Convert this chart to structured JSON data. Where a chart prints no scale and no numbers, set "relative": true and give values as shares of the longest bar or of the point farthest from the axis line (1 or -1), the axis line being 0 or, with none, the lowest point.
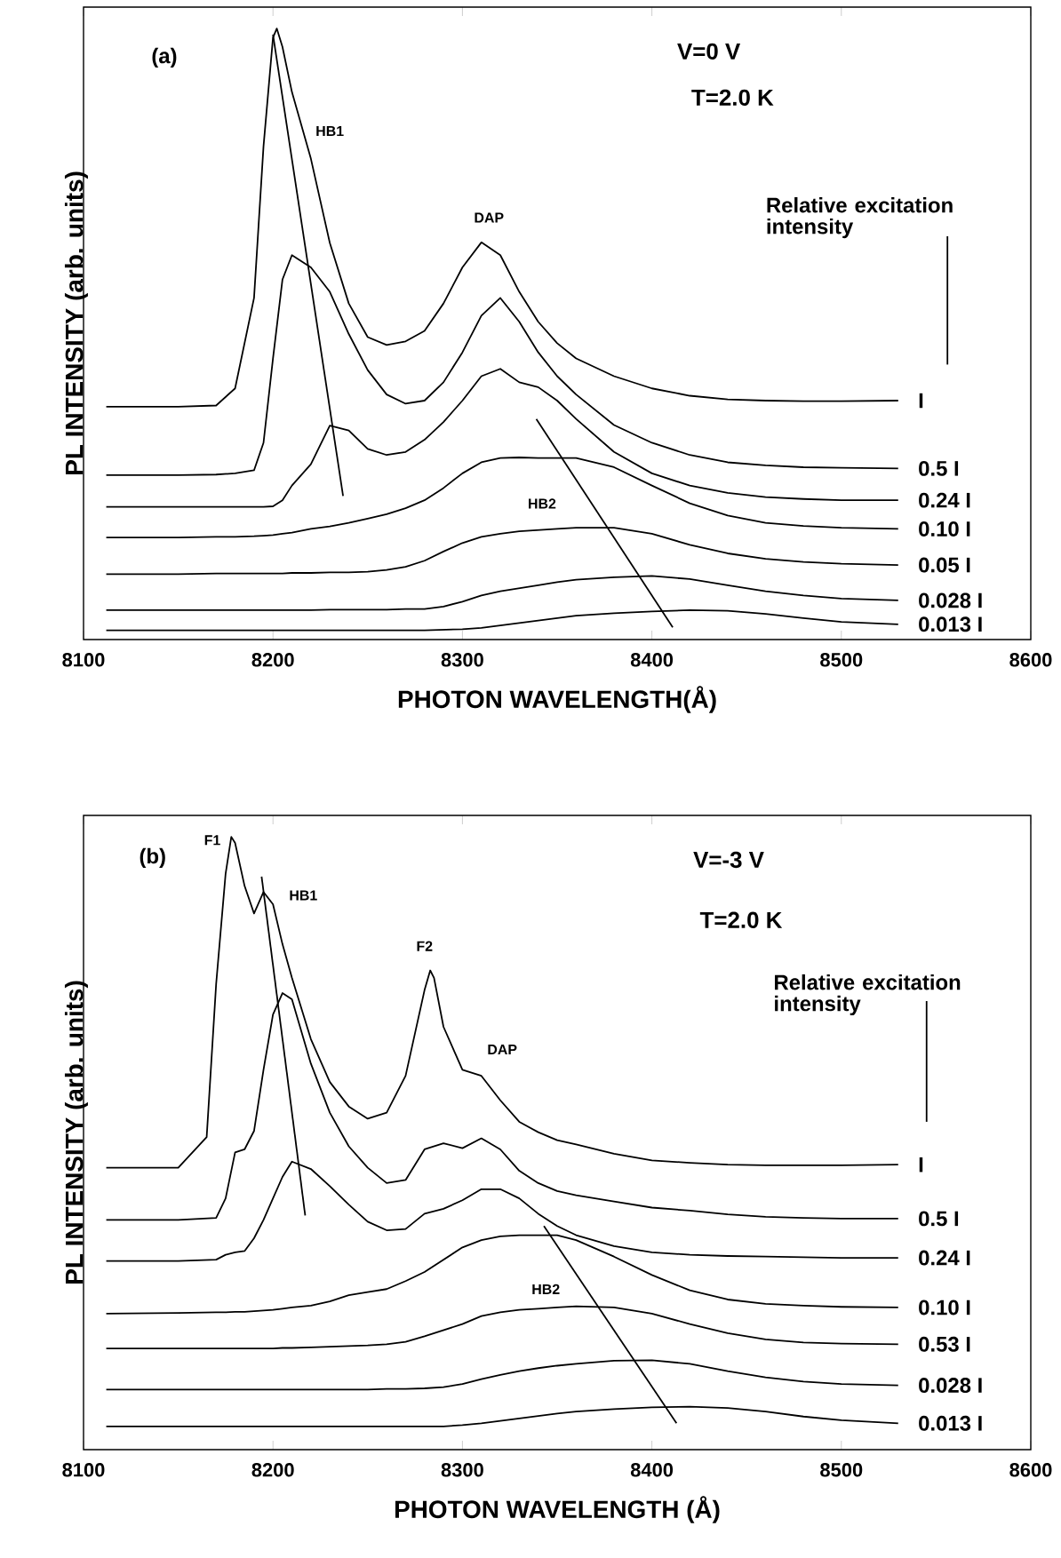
{
  "chart_data": [
    {
      "type": "line",
      "relative": true,
      "title": "(a)",
      "xlabel": "PHOTON WAVELENGTH(Å)",
      "ylabel": "PL INTENSITY (arb. units)",
      "legend_title": "Relative excitation intensity",
      "annotations": [
        "V=0 V",
        "T=2.0 K",
        "HB1",
        "DAP",
        "HB2"
      ],
      "xlim": [
        8100,
        8600
      ],
      "xticks": [
        8100,
        8200,
        8300,
        8400,
        8500,
        8600
      ],
      "series": [
        {
          "name": "I",
          "color": "#000000",
          "x": [
            8112,
            8150,
            8170,
            8180,
            8190,
            8195,
            8200,
            8202,
            8205,
            8210,
            8220,
            8230,
            8240,
            8250,
            8260,
            8270,
            8280,
            8290,
            8300,
            8310,
            8320,
            8330,
            8340,
            8350,
            8360,
            8380,
            8400,
            8420,
            8440,
            8460,
            8480,
            8500,
            8530
          ],
          "values": [
            0.381,
            0.381,
            0.383,
            0.411,
            0.559,
            0.807,
            0.985,
            1.0,
            0.97,
            0.896,
            0.787,
            0.649,
            0.55,
            0.495,
            0.482,
            0.488,
            0.505,
            0.55,
            0.609,
            0.65,
            0.629,
            0.569,
            0.52,
            0.485,
            0.46,
            0.431,
            0.411,
            0.399,
            0.393,
            0.391,
            0.39,
            0.39,
            0.391
          ]
        },
        {
          "name": "0.5 I",
          "color": "#000000",
          "x": [
            8112,
            8150,
            8170,
            8180,
            8190,
            8195,
            8200,
            8205,
            8210,
            8220,
            8230,
            8240,
            8250,
            8260,
            8270,
            8280,
            8290,
            8300,
            8310,
            8320,
            8330,
            8340,
            8350,
            8360,
            8380,
            8400,
            8420,
            8440,
            8460,
            8480,
            8500,
            8530
          ],
          "values": [
            0.269,
            0.269,
            0.27,
            0.272,
            0.277,
            0.322,
            0.46,
            0.589,
            0.629,
            0.609,
            0.569,
            0.5,
            0.441,
            0.401,
            0.386,
            0.391,
            0.421,
            0.47,
            0.53,
            0.559,
            0.52,
            0.47,
            0.431,
            0.401,
            0.351,
            0.322,
            0.302,
            0.29,
            0.285,
            0.282,
            0.281,
            0.28
          ]
        },
        {
          "name": "0.24 I",
          "color": "#000000",
          "x": [
            8112,
            8150,
            8170,
            8180,
            8190,
            8195,
            8200,
            8205,
            8210,
            8220,
            8230,
            8240,
            8250,
            8260,
            8270,
            8280,
            8290,
            8300,
            8310,
            8320,
            8330,
            8340,
            8350,
            8360,
            8380,
            8400,
            8420,
            8440,
            8460,
            8480,
            8500,
            8530
          ],
          "values": [
            0.217,
            0.217,
            0.217,
            0.217,
            0.217,
            0.217,
            0.218,
            0.228,
            0.252,
            0.287,
            0.35,
            0.342,
            0.312,
            0.302,
            0.307,
            0.327,
            0.356,
            0.391,
            0.431,
            0.443,
            0.421,
            0.413,
            0.391,
            0.361,
            0.307,
            0.272,
            0.252,
            0.24,
            0.233,
            0.23,
            0.228,
            0.228
          ]
        },
        {
          "name": "0.10 I",
          "color": "#000000",
          "x": [
            8112,
            8150,
            8170,
            8180,
            8190,
            8195,
            8200,
            8205,
            8210,
            8220,
            8230,
            8240,
            8250,
            8260,
            8270,
            8280,
            8290,
            8300,
            8310,
            8320,
            8330,
            8340,
            8350,
            8360,
            8380,
            8400,
            8420,
            8440,
            8460,
            8480,
            8500,
            8530
          ],
          "values": [
            0.167,
            0.167,
            0.168,
            0.168,
            0.169,
            0.17,
            0.171,
            0.173,
            0.175,
            0.181,
            0.185,
            0.191,
            0.198,
            0.205,
            0.215,
            0.228,
            0.248,
            0.272,
            0.29,
            0.297,
            0.298,
            0.297,
            0.297,
            0.297,
            0.282,
            0.252,
            0.223,
            0.203,
            0.191,
            0.186,
            0.183,
            0.181
          ]
        },
        {
          "name": "0.05 I",
          "color": "#000000",
          "x": [
            8112,
            8150,
            8170,
            8180,
            8190,
            8195,
            8200,
            8205,
            8210,
            8220,
            8230,
            8240,
            8250,
            8260,
            8270,
            8280,
            8290,
            8300,
            8310,
            8320,
            8330,
            8340,
            8350,
            8360,
            8380,
            8400,
            8420,
            8440,
            8460,
            8480,
            8500,
            8530
          ],
          "values": [
            0.107,
            0.107,
            0.108,
            0.108,
            0.108,
            0.108,
            0.108,
            0.108,
            0.109,
            0.109,
            0.11,
            0.11,
            0.111,
            0.114,
            0.119,
            0.129,
            0.144,
            0.158,
            0.168,
            0.173,
            0.177,
            0.179,
            0.181,
            0.183,
            0.183,
            0.173,
            0.155,
            0.141,
            0.132,
            0.127,
            0.124,
            0.122
          ]
        },
        {
          "name": "0.028 I",
          "color": "#000000",
          "x": [
            8112,
            8150,
            8170,
            8180,
            8190,
            8195,
            8200,
            8205,
            8210,
            8220,
            8230,
            8240,
            8250,
            8260,
            8270,
            8280,
            8290,
            8300,
            8310,
            8320,
            8330,
            8340,
            8350,
            8360,
            8380,
            8400,
            8420,
            8440,
            8460,
            8480,
            8500,
            8530
          ],
          "values": [
            0.048,
            0.048,
            0.048,
            0.048,
            0.048,
            0.048,
            0.048,
            0.048,
            0.048,
            0.048,
            0.049,
            0.049,
            0.049,
            0.049,
            0.05,
            0.05,
            0.054,
            0.062,
            0.072,
            0.079,
            0.084,
            0.089,
            0.094,
            0.098,
            0.102,
            0.104,
            0.099,
            0.089,
            0.079,
            0.072,
            0.067,
            0.064
          ]
        },
        {
          "name": "0.013 I",
          "color": "#000000",
          "x": [
            8112,
            8150,
            8170,
            8180,
            8190,
            8195,
            8200,
            8205,
            8210,
            8220,
            8230,
            8240,
            8250,
            8260,
            8270,
            8280,
            8290,
            8300,
            8310,
            8320,
            8330,
            8340,
            8350,
            8360,
            8380,
            8400,
            8420,
            8440,
            8460,
            8480,
            8500,
            8530
          ],
          "values": [
            0.015,
            0.015,
            0.015,
            0.015,
            0.015,
            0.015,
            0.015,
            0.015,
            0.015,
            0.015,
            0.015,
            0.015,
            0.015,
            0.015,
            0.015,
            0.015,
            0.016,
            0.017,
            0.019,
            0.023,
            0.027,
            0.031,
            0.035,
            0.039,
            0.043,
            0.046,
            0.048,
            0.047,
            0.042,
            0.035,
            0.029,
            0.025
          ]
        },
        {
          "type": "line",
          "color": "#000000",
          "x": [
            8200,
            8237
          ],
          "values": [
            0.99,
            0.235
          ]
        },
        {
          "type": "line",
          "color": "#000000",
          "x": [
            8339,
            8411
          ],
          "values": [
            0.361,
            0.02
          ]
        },
        {
          "type": "line",
          "color": "#000000",
          "x": [
            8556,
            8556
          ],
          "values": [
            0.66,
            0.45
          ]
        }
      ]
    },
    {
      "type": "line",
      "relative": true,
      "title": "(b)",
      "xlabel": "PHOTON WAVELENGTH (Å)",
      "ylabel": "PL INTENSITY (arb. units)",
      "legend_title": "Relative excitation intensity",
      "annotations": [
        "V=-3 V",
        "T=2.0 K",
        "F1",
        "HB1",
        "F2",
        "DAP",
        "HB2"
      ],
      "xlim": [
        8100,
        8600
      ],
      "xticks": [
        8100,
        8200,
        8300,
        8400,
        8500,
        8600
      ],
      "series": [
        {
          "name": "I",
          "color": "#000000",
          "x": [
            8112,
            8150,
            8165,
            8170,
            8175,
            8178,
            8180,
            8185,
            8190,
            8195,
            8200,
            8205,
            8210,
            8220,
            8230,
            8240,
            8250,
            8260,
            8270,
            8280,
            8283,
            8285,
            8290,
            8300,
            8310,
            8320,
            8330,
            8340,
            8350,
            8360,
            8380,
            8400,
            8420,
            8440,
            8460,
            8480,
            8500,
            8530
          ],
          "values": [
            0.46,
            0.46,
            0.51,
            0.76,
            0.94,
            1.0,
            0.99,
            0.92,
            0.875,
            0.91,
            0.89,
            0.825,
            0.77,
            0.67,
            0.6,
            0.56,
            0.54,
            0.55,
            0.61,
            0.75,
            0.782,
            0.77,
            0.69,
            0.62,
            0.61,
            0.57,
            0.535,
            0.518,
            0.505,
            0.498,
            0.483,
            0.472,
            0.468,
            0.465,
            0.464,
            0.464,
            0.464,
            0.465
          ]
        },
        {
          "name": "0.5 I",
          "color": "#000000",
          "x": [
            8112,
            8150,
            8170,
            8175,
            8180,
            8185,
            8190,
            8195,
            8200,
            8205,
            8210,
            8220,
            8230,
            8240,
            8250,
            8260,
            8270,
            8280,
            8290,
            8300,
            8310,
            8320,
            8330,
            8340,
            8350,
            8360,
            8380,
            8400,
            8420,
            8440,
            8460,
            8480,
            8500,
            8530
          ],
          "values": [
            0.375,
            0.375,
            0.378,
            0.41,
            0.485,
            0.49,
            0.52,
            0.62,
            0.71,
            0.745,
            0.735,
            0.63,
            0.55,
            0.495,
            0.46,
            0.435,
            0.44,
            0.49,
            0.5,
            0.492,
            0.508,
            0.49,
            0.455,
            0.435,
            0.422,
            0.415,
            0.405,
            0.395,
            0.39,
            0.384,
            0.38,
            0.378,
            0.377,
            0.377
          ]
        },
        {
          "name": "0.24 I",
          "color": "#000000",
          "x": [
            8112,
            8150,
            8170,
            8175,
            8180,
            8185,
            8190,
            8195,
            8200,
            8205,
            8210,
            8220,
            8230,
            8240,
            8250,
            8260,
            8270,
            8280,
            8290,
            8300,
            8310,
            8320,
            8330,
            8340,
            8350,
            8360,
            8380,
            8400,
            8420,
            8440,
            8460,
            8480,
            8500,
            8530
          ],
          "values": [
            0.308,
            0.308,
            0.31,
            0.318,
            0.322,
            0.324,
            0.345,
            0.375,
            0.41,
            0.445,
            0.47,
            0.458,
            0.43,
            0.4,
            0.372,
            0.358,
            0.36,
            0.385,
            0.393,
            0.407,
            0.425,
            0.425,
            0.41,
            0.385,
            0.365,
            0.35,
            0.332,
            0.322,
            0.318,
            0.316,
            0.315,
            0.314,
            0.313,
            0.313
          ]
        },
        {
          "name": "0.10 I",
          "color": "#000000",
          "x": [
            8112,
            8150,
            8170,
            8175,
            8180,
            8185,
            8190,
            8195,
            8200,
            8205,
            8210,
            8220,
            8230,
            8240,
            8250,
            8260,
            8270,
            8280,
            8290,
            8300,
            8310,
            8320,
            8330,
            8340,
            8350,
            8360,
            8380,
            8400,
            8420,
            8440,
            8460,
            8480,
            8500,
            8530
          ],
          "values": [
            0.222,
            0.223,
            0.224,
            0.224,
            0.225,
            0.225,
            0.226,
            0.227,
            0.228,
            0.23,
            0.232,
            0.235,
            0.242,
            0.252,
            0.257,
            0.262,
            0.275,
            0.29,
            0.31,
            0.33,
            0.342,
            0.348,
            0.35,
            0.35,
            0.35,
            0.342,
            0.315,
            0.285,
            0.26,
            0.245,
            0.238,
            0.235,
            0.233,
            0.232
          ]
        },
        {
          "name": "0.53 I",
          "color": "#000000",
          "x": [
            8112,
            8150,
            8170,
            8175,
            8180,
            8185,
            8190,
            8195,
            8200,
            8205,
            8210,
            8220,
            8230,
            8240,
            8250,
            8260,
            8270,
            8280,
            8290,
            8300,
            8310,
            8320,
            8330,
            8340,
            8350,
            8360,
            8380,
            8400,
            8420,
            8440,
            8460,
            8480,
            8500,
            8530
          ],
          "values": [
            0.165,
            0.165,
            0.165,
            0.165,
            0.165,
            0.165,
            0.165,
            0.165,
            0.165,
            0.166,
            0.166,
            0.167,
            0.168,
            0.169,
            0.17,
            0.172,
            0.176,
            0.185,
            0.195,
            0.205,
            0.218,
            0.224,
            0.228,
            0.23,
            0.232,
            0.234,
            0.232,
            0.222,
            0.205,
            0.19,
            0.18,
            0.175,
            0.173,
            0.172
          ]
        },
        {
          "name": "0.028 I",
          "color": "#000000",
          "x": [
            8112,
            8150,
            8170,
            8175,
            8180,
            8185,
            8190,
            8195,
            8200,
            8205,
            8210,
            8220,
            8230,
            8240,
            8250,
            8260,
            8270,
            8280,
            8290,
            8300,
            8310,
            8320,
            8330,
            8340,
            8350,
            8360,
            8380,
            8400,
            8420,
            8440,
            8460,
            8480,
            8500,
            8530
          ],
          "values": [
            0.098,
            0.098,
            0.098,
            0.098,
            0.098,
            0.098,
            0.098,
            0.098,
            0.098,
            0.098,
            0.098,
            0.098,
            0.098,
            0.098,
            0.098,
            0.099,
            0.099,
            0.1,
            0.102,
            0.107,
            0.115,
            0.122,
            0.128,
            0.133,
            0.137,
            0.14,
            0.145,
            0.146,
            0.14,
            0.128,
            0.118,
            0.111,
            0.107,
            0.105
          ]
        },
        {
          "name": "0.013 I",
          "color": "#000000",
          "x": [
            8112,
            8150,
            8170,
            8175,
            8180,
            8185,
            8190,
            8195,
            8200,
            8205,
            8210,
            8220,
            8230,
            8240,
            8250,
            8260,
            8270,
            8280,
            8290,
            8300,
            8310,
            8320,
            8330,
            8340,
            8350,
            8360,
            8380,
            8400,
            8420,
            8440,
            8460,
            8480,
            8500,
            8530
          ],
          "values": [
            0.038,
            0.038,
            0.038,
            0.038,
            0.038,
            0.038,
            0.038,
            0.038,
            0.038,
            0.038,
            0.038,
            0.038,
            0.038,
            0.038,
            0.038,
            0.038,
            0.038,
            0.038,
            0.038,
            0.04,
            0.043,
            0.047,
            0.051,
            0.055,
            0.059,
            0.062,
            0.066,
            0.069,
            0.07,
            0.068,
            0.062,
            0.054,
            0.048,
            0.043
          ]
        },
        {
          "type": "line",
          "color": "#000000",
          "x": [
            8194,
            8217
          ],
          "values": [
            0.935,
            0.382
          ]
        },
        {
          "type": "line",
          "color": "#000000",
          "x": [
            8343,
            8413
          ],
          "values": [
            0.365,
            0.043
          ]
        },
        {
          "type": "line",
          "color": "#000000",
          "x": [
            8545,
            8545
          ],
          "values": [
            0.732,
            0.535
          ]
        }
      ]
    }
  ]
}
